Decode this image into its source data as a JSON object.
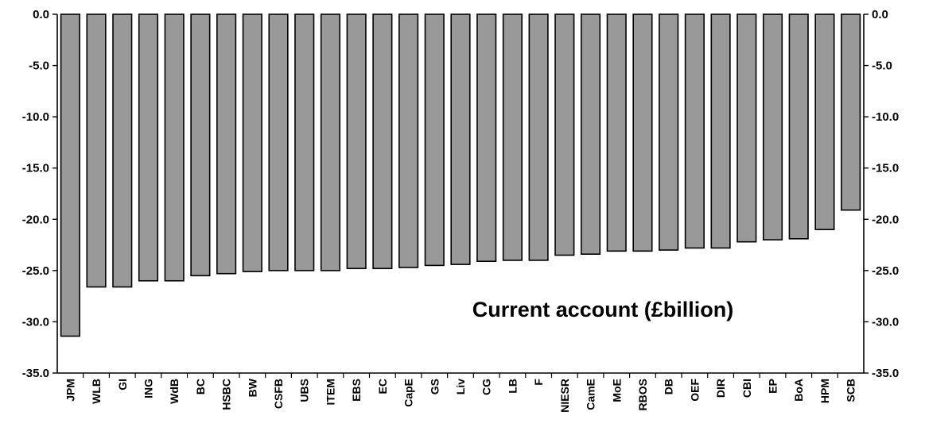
{
  "chart_data": {
    "type": "bar",
    "title": "Current account (£billion)",
    "xlabel": "",
    "ylabel": "",
    "ylim": [
      -35,
      0
    ],
    "yticks": [
      "0.0",
      "-5.0",
      "-10.0",
      "-15.0",
      "-20.0",
      "-25.0",
      "-30.0",
      "-35.0"
    ],
    "ytick_values": [
      0,
      -5,
      -10,
      -15,
      -20,
      -25,
      -30,
      -35
    ],
    "y_axis_both_sides": true,
    "grid": false,
    "legend": "none",
    "bar_color": "#999999",
    "bar_edge_color": "#000000",
    "categories": [
      "JPM",
      "WLB",
      "GI",
      "ING",
      "WdB",
      "BC",
      "HSBC",
      "BW",
      "CSFB",
      "UBS",
      "ITEM",
      "EBS",
      "EC",
      "CapE",
      "GS",
      "Liv",
      "CG",
      "LB",
      "F",
      "NIESR",
      "CamE",
      "MoE",
      "RBOS",
      "DB",
      "OEF",
      "DIR",
      "CBI",
      "EP",
      "BoA",
      "HPM",
      "SCB"
    ],
    "values": [
      -31.4,
      -26.6,
      -26.6,
      -26.0,
      -26.0,
      -25.5,
      -25.3,
      -25.1,
      -25.0,
      -25.0,
      -25.0,
      -24.8,
      -24.8,
      -24.7,
      -24.5,
      -24.4,
      -24.1,
      -24.0,
      -24.0,
      -23.5,
      -23.4,
      -23.1,
      -23.1,
      -23.0,
      -22.8,
      -22.8,
      -22.2,
      -22.0,
      -21.9,
      -21.0,
      -19.1
    ]
  }
}
